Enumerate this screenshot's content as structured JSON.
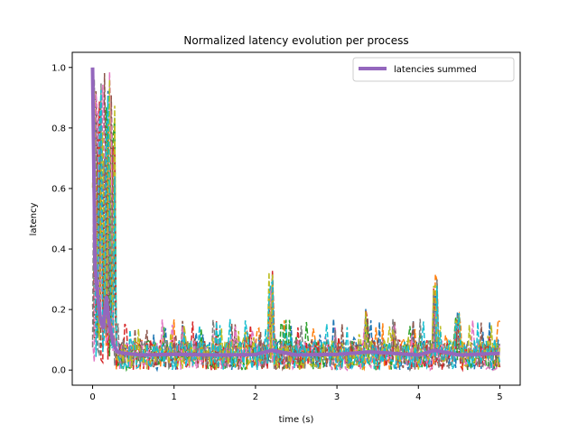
{
  "chart_data": {
    "type": "line",
    "title": "Normalized latency evolution per process",
    "xlabel": "time (s)",
    "ylabel": "latency",
    "xlim": [
      -0.25,
      5.25
    ],
    "ylim": [
      -0.05,
      1.05
    ],
    "x_ticks": [
      0,
      1,
      2,
      3,
      4,
      5
    ],
    "x_tick_labels": [
      "0",
      "1",
      "2",
      "3",
      "4",
      "5"
    ],
    "y_ticks": [
      0.0,
      0.2,
      0.4,
      0.6,
      0.8,
      1.0
    ],
    "y_tick_labels": [
      "0.0",
      "0.2",
      "0.4",
      "0.6",
      "0.8",
      "1.0"
    ],
    "grid": false,
    "legend_position": "top-right",
    "legend_entries": [
      "latencies summed"
    ],
    "process_series_style": "dashed",
    "process_series_colors": [
      "#1f77b4",
      "#ff7f0e",
      "#2ca02c",
      "#d62728",
      "#8c564b",
      "#e377c2",
      "#7f7f7f",
      "#bcbd22",
      "#17becf"
    ],
    "series": [
      {
        "name": "latencies summed",
        "color": "#9467bd",
        "x": [
          0.0,
          0.03,
          0.06,
          0.1,
          0.13,
          0.17,
          0.2,
          0.25,
          0.3,
          0.4,
          0.6,
          1.0,
          1.5,
          2.0,
          2.2,
          2.5,
          3.0,
          3.4,
          4.0,
          4.2,
          4.5,
          5.0
        ],
        "values": [
          1.0,
          0.35,
          0.25,
          0.16,
          0.14,
          0.24,
          0.16,
          0.09,
          0.06,
          0.055,
          0.05,
          0.052,
          0.05,
          0.051,
          0.065,
          0.05,
          0.052,
          0.06,
          0.05,
          0.065,
          0.05,
          0.055
        ]
      }
    ],
    "annotations": []
  }
}
